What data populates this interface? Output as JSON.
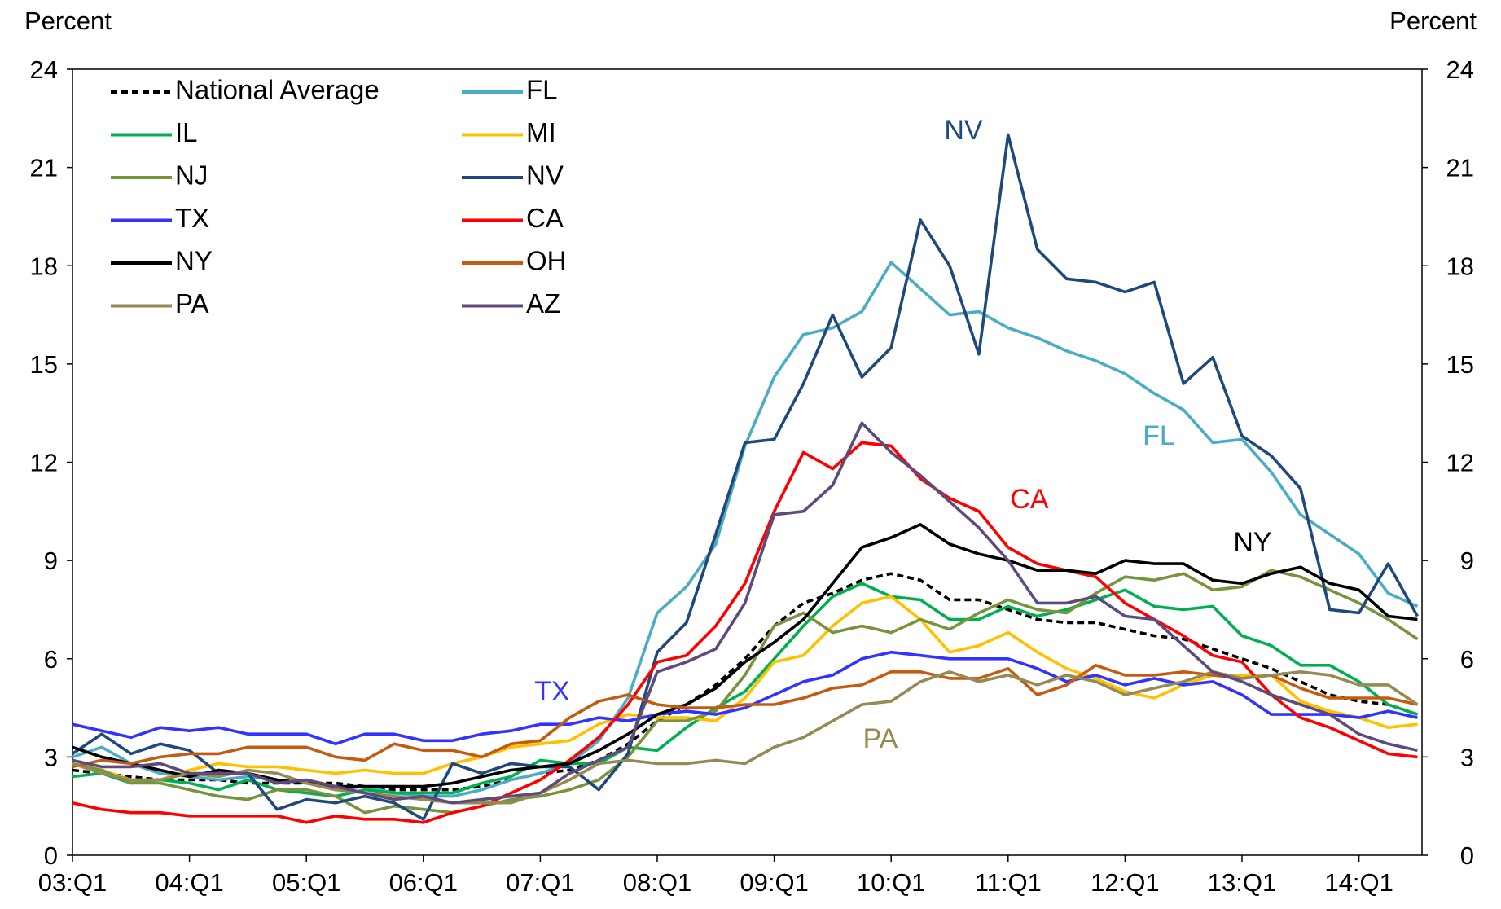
{
  "chart_data": {
    "type": "line",
    "y_label": "Percent",
    "y2_label": "Percent",
    "categories": [
      "03:Q1",
      null,
      null,
      null,
      "04:Q1",
      null,
      null,
      null,
      "05:Q1",
      null,
      null,
      null,
      "06:Q1",
      null,
      null,
      null,
      "07:Q1",
      null,
      null,
      null,
      "08:Q1",
      null,
      null,
      null,
      "09:Q1",
      null,
      null,
      null,
      "10:Q1",
      null,
      null,
      null,
      "11:Q1",
      null,
      null,
      null,
      "12:Q1",
      null,
      null,
      null,
      "13:Q1",
      null,
      null,
      null,
      "14:Q1",
      null,
      null
    ],
    "ylim": [
      0,
      24
    ],
    "yticks": [
      0,
      3,
      6,
      9,
      12,
      15,
      18,
      21,
      24
    ],
    "y2lim": [
      0,
      24
    ],
    "y2ticks": [
      0,
      3,
      6,
      9,
      12,
      15,
      18,
      21,
      24
    ],
    "grid": false,
    "legend_position": "upper-left",
    "series": [
      {
        "name": "National Average",
        "color": "#000000",
        "line_style": "dashed",
        "values": [
          2.6,
          2.5,
          2.4,
          2.3,
          2.3,
          2.3,
          2.2,
          2.2,
          2.2,
          2.2,
          2.1,
          2.0,
          2.0,
          2.0,
          2.1,
          2.3,
          2.5,
          2.6,
          2.9,
          3.4,
          4.1,
          4.6,
          5.2,
          6.0,
          7.0,
          7.7,
          8.0,
          8.4,
          8.6,
          8.4,
          7.8,
          7.8,
          7.5,
          7.2,
          7.1,
          7.1,
          6.9,
          6.7,
          6.6,
          6.3,
          6.0,
          5.7,
          5.3,
          4.9,
          4.7,
          4.6,
          4.3
        ]
      },
      {
        "name": "FL",
        "color": "#4bacc6",
        "values": [
          3.0,
          3.3,
          2.8,
          2.5,
          2.4,
          2.3,
          2.4,
          2.3,
          2.2,
          2.0,
          2.1,
          1.9,
          1.8,
          1.8,
          2.0,
          2.3,
          2.5,
          2.8,
          3.5,
          4.8,
          7.4,
          8.2,
          9.5,
          12.5,
          14.6,
          15.9,
          16.1,
          16.6,
          18.1,
          17.3,
          16.5,
          16.6,
          16.1,
          15.8,
          15.4,
          15.1,
          14.7,
          14.1,
          13.6,
          12.6,
          12.7,
          11.7,
          10.4,
          9.8,
          9.2,
          8.0,
          7.6
        ]
      },
      {
        "name": "IL",
        "color": "#00b050",
        "values": [
          2.4,
          2.5,
          2.2,
          2.3,
          2.2,
          2.0,
          2.3,
          2.0,
          1.9,
          1.8,
          2.0,
          1.9,
          1.9,
          1.9,
          2.2,
          2.4,
          2.9,
          2.8,
          2.8,
          3.3,
          3.2,
          3.9,
          4.5,
          5.0,
          6.0,
          7.0,
          7.9,
          8.3,
          7.9,
          7.8,
          7.2,
          7.2,
          7.6,
          7.3,
          7.5,
          7.8,
          8.1,
          7.6,
          7.5,
          7.6,
          6.7,
          6.4,
          5.8,
          5.8,
          5.3,
          4.6,
          4.3
        ]
      },
      {
        "name": "MI",
        "color": "#ffc000",
        "values": [
          2.8,
          2.6,
          2.3,
          2.3,
          2.6,
          2.8,
          2.7,
          2.7,
          2.6,
          2.5,
          2.6,
          2.5,
          2.5,
          2.8,
          3.0,
          3.3,
          3.4,
          3.5,
          4.0,
          4.3,
          4.2,
          4.2,
          4.1,
          4.8,
          5.9,
          6.1,
          7.0,
          7.7,
          7.9,
          7.2,
          6.2,
          6.4,
          6.8,
          6.2,
          5.7,
          5.4,
          5.0,
          4.8,
          5.2,
          5.5,
          5.5,
          5.5,
          4.7,
          4.4,
          4.2,
          3.9,
          4.0
        ]
      },
      {
        "name": "NJ",
        "color": "#77933c",
        "values": [
          2.8,
          2.6,
          2.2,
          2.2,
          2.0,
          1.8,
          1.7,
          2.0,
          2.0,
          1.8,
          1.3,
          1.5,
          1.4,
          1.3,
          1.5,
          1.7,
          1.8,
          2.0,
          2.3,
          3.0,
          4.1,
          4.1,
          4.4,
          5.5,
          7.0,
          7.4,
          6.8,
          7.0,
          6.8,
          7.2,
          6.9,
          7.4,
          7.8,
          7.5,
          7.4,
          8.0,
          8.5,
          8.4,
          8.6,
          8.1,
          8.2,
          8.7,
          8.5,
          8.1,
          7.7,
          7.2,
          6.6
        ]
      },
      {
        "name": "NV",
        "color": "#1f497d",
        "values": [
          3.1,
          3.7,
          3.1,
          3.4,
          3.2,
          2.5,
          2.5,
          1.4,
          1.7,
          1.6,
          1.8,
          1.6,
          1.1,
          2.8,
          2.5,
          2.8,
          2.7,
          2.7,
          2.0,
          3.1,
          6.2,
          7.1,
          9.8,
          12.6,
          12.7,
          14.4,
          16.5,
          14.6,
          15.5,
          19.4,
          18.0,
          15.3,
          22.0,
          18.5,
          17.6,
          17.5,
          17.2,
          17.5,
          14.4,
          15.2,
          12.8,
          12.2,
          11.2,
          7.5,
          7.4,
          8.9,
          7.3
        ]
      },
      {
        "name": "TX",
        "color": "#3333ff",
        "values": [
          4.0,
          3.8,
          3.6,
          3.9,
          3.8,
          3.9,
          3.7,
          3.7,
          3.7,
          3.4,
          3.7,
          3.7,
          3.5,
          3.5,
          3.7,
          3.8,
          4.0,
          4.0,
          4.2,
          4.1,
          4.3,
          4.4,
          4.3,
          4.5,
          4.9,
          5.3,
          5.5,
          6.0,
          6.2,
          6.1,
          6.0,
          6.0,
          6.0,
          5.7,
          5.3,
          5.5,
          5.2,
          5.4,
          5.2,
          5.3,
          4.9,
          4.3,
          4.3,
          4.3,
          4.2,
          4.4,
          4.2
        ]
      },
      {
        "name": "CA",
        "color": "#ff0000",
        "values": [
          1.6,
          1.4,
          1.3,
          1.3,
          1.2,
          1.2,
          1.2,
          1.2,
          1.0,
          1.2,
          1.1,
          1.1,
          1.0,
          1.3,
          1.5,
          1.9,
          2.3,
          2.9,
          3.6,
          4.6,
          5.9,
          6.1,
          7.0,
          8.3,
          10.5,
          12.3,
          11.8,
          12.6,
          12.5,
          11.5,
          10.9,
          10.5,
          9.4,
          8.9,
          8.7,
          8.5,
          7.7,
          7.2,
          6.7,
          6.1,
          5.9,
          4.9,
          4.2,
          3.9,
          3.5,
          3.1,
          3.0
        ]
      },
      {
        "name": "NY",
        "color": "#000000",
        "values": [
          3.3,
          3.0,
          2.8,
          2.6,
          2.4,
          2.6,
          2.5,
          2.3,
          2.2,
          2.1,
          2.1,
          2.1,
          2.1,
          2.2,
          2.4,
          2.6,
          2.7,
          2.8,
          3.2,
          3.7,
          4.3,
          4.6,
          5.1,
          5.9,
          6.5,
          7.2,
          8.3,
          9.4,
          9.7,
          10.1,
          9.5,
          9.2,
          9.0,
          8.7,
          8.7,
          8.6,
          9.0,
          8.9,
          8.9,
          8.4,
          8.3,
          8.6,
          8.8,
          8.3,
          8.1,
          7.3,
          7.2
        ]
      },
      {
        "name": "OH",
        "color": "#c55a11",
        "values": [
          2.7,
          2.9,
          2.8,
          3.0,
          3.1,
          3.1,
          3.3,
          3.3,
          3.3,
          3.0,
          2.9,
          3.4,
          3.2,
          3.2,
          3.0,
          3.4,
          3.5,
          4.2,
          4.7,
          4.9,
          4.6,
          4.5,
          4.5,
          4.6,
          4.6,
          4.8,
          5.1,
          5.2,
          5.6,
          5.6,
          5.4,
          5.4,
          5.7,
          4.9,
          5.2,
          5.8,
          5.5,
          5.5,
          5.6,
          5.5,
          5.4,
          5.5,
          5.1,
          4.8,
          4.8,
          4.8,
          4.6
        ]
      },
      {
        "name": "PA",
        "color": "#948a54",
        "values": [
          2.8,
          2.5,
          2.3,
          2.3,
          2.5,
          2.4,
          2.6,
          2.5,
          2.2,
          2.0,
          1.9,
          1.8,
          1.7,
          1.6,
          1.6,
          1.6,
          1.9,
          2.3,
          2.8,
          2.9,
          2.8,
          2.8,
          2.9,
          2.8,
          3.3,
          3.6,
          4.1,
          4.6,
          4.7,
          5.3,
          5.6,
          5.3,
          5.5,
          5.2,
          5.5,
          5.3,
          4.9,
          5.1,
          5.3,
          5.6,
          5.4,
          5.5,
          5.6,
          5.5,
          5.2,
          5.2,
          4.6
        ]
      },
      {
        "name": "AZ",
        "color": "#604a7b",
        "values": [
          2.9,
          2.7,
          2.7,
          2.8,
          2.5,
          2.5,
          2.5,
          2.2,
          2.3,
          2.1,
          1.9,
          1.7,
          1.8,
          1.6,
          1.7,
          1.8,
          1.9,
          2.5,
          2.9,
          3.3,
          5.6,
          5.9,
          6.3,
          7.7,
          10.4,
          10.5,
          11.3,
          13.2,
          12.3,
          11.6,
          10.8,
          10.0,
          9.0,
          7.7,
          7.7,
          7.9,
          7.3,
          7.2,
          6.4,
          5.6,
          5.3,
          4.9,
          4.6,
          4.3,
          3.7,
          3.4,
          3.2
        ]
      }
    ],
    "annotations": [
      "NV",
      "FL",
      "CA",
      "NY",
      "TX",
      "PA"
    ]
  }
}
